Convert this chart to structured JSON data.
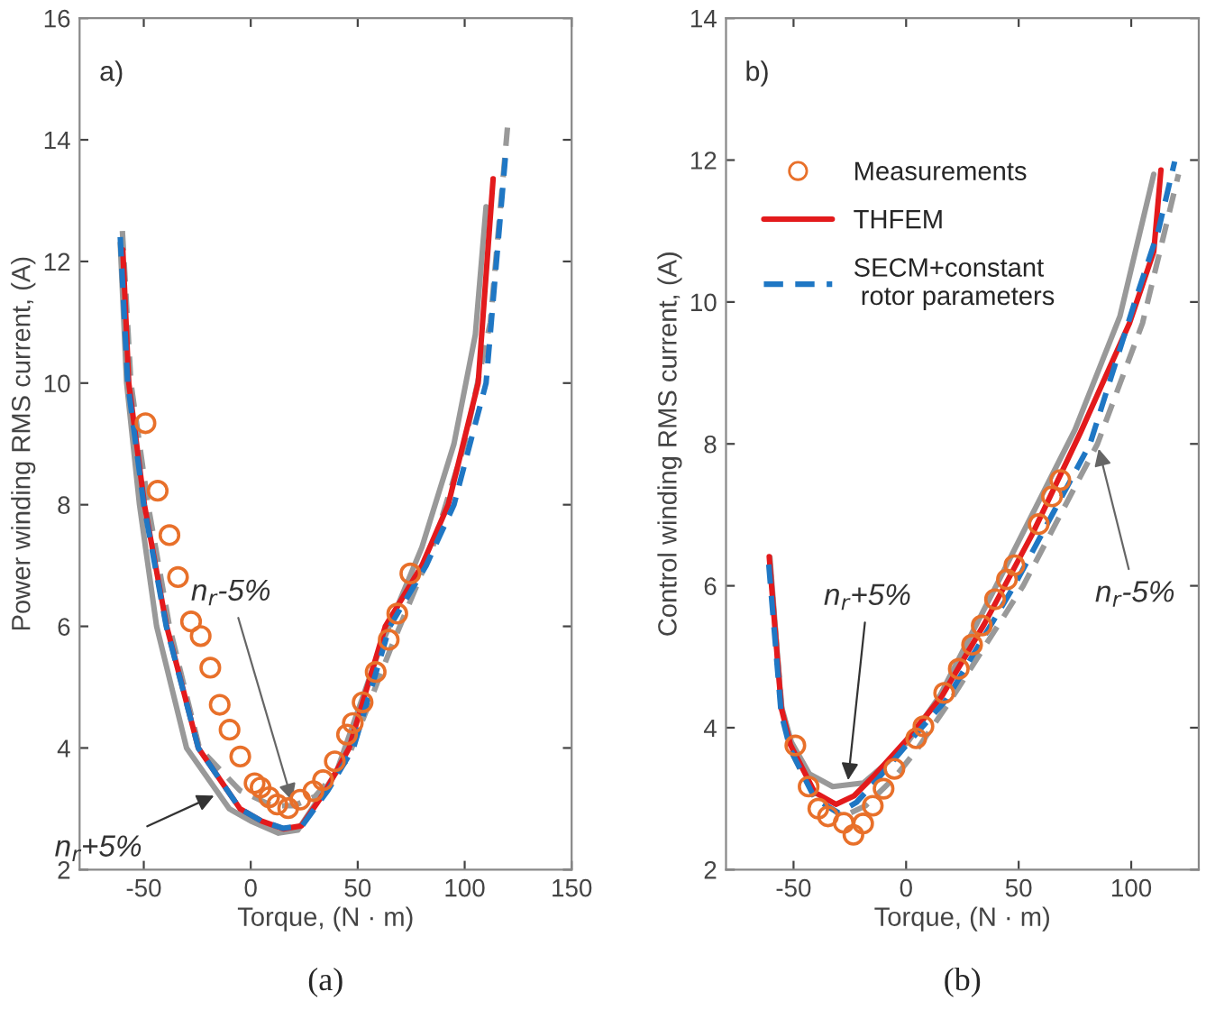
{
  "chart_data": [
    {
      "type": "line",
      "xlabel": "Torque, (N · m)",
      "ylabel": "Power winding RMS current, (A)",
      "xlim": [
        -80,
        150
      ],
      "xticks": [
        -50,
        0,
        50,
        100,
        150
      ],
      "ylim": [
        2,
        16
      ],
      "yticks": [
        2,
        4,
        6,
        8,
        10,
        12,
        14,
        16
      ],
      "grid": false,
      "legend": false,
      "annotations": [
        "a)",
        "(a)",
        {
          "text": "n$_{r}$-5%",
          "x": 20,
          "y": 3.05
        },
        {
          "text": "n$_{r}$+5%",
          "x": -15,
          "y": 3.25
        }
      ],
      "series": [
        {
          "type": "scatter",
          "marker": "circle",
          "color": "#e8702a",
          "x": [
            -49.2,
            -43.5,
            -38,
            -34,
            -27.9,
            -23.4,
            -18.9,
            -14.5,
            -9.9,
            -4.9,
            1.8,
            4.6,
            8.6,
            12.4,
            17.5,
            23.1,
            29.3,
            33.8,
            39.3,
            45,
            47.7,
            52.3,
            58.4,
            64.5,
            68.5,
            74.6
          ],
          "values": [
            9.34,
            8.23,
            7.5,
            6.81,
            6.08,
            5.84,
            5.32,
            4.71,
            4.3,
            3.86,
            3.42,
            3.35,
            3.19,
            3.07,
            3.01,
            3.15,
            3.29,
            3.47,
            3.78,
            4.22,
            4.41,
            4.75,
            5.25,
            5.78,
            6.21,
            6.87
          ]
        },
        {
          "line_style": "solid",
          "color": "#999999",
          "x": [
            -61,
            -58,
            -52,
            -44,
            -30,
            -10,
            0,
            13,
            22,
            40,
            60,
            80,
            95,
            105,
            110
          ],
          "values": [
            12.3,
            10,
            8,
            6,
            4,
            3,
            2.8,
            2.6,
            2.65,
            3.6,
            5.6,
            7.3,
            9,
            10.8,
            12.9
          ]
        },
        {
          "line_style": "dashed",
          "color": "#999999",
          "x": [
            -60,
            -56,
            -48,
            -38,
            -24,
            -5,
            10,
            20,
            30,
            45,
            65,
            85,
            100,
            112,
            120
          ],
          "values": [
            12.5,
            10,
            8,
            6,
            4,
            3.3,
            3.05,
            3.05,
            3.2,
            3.8,
            5.6,
            7.3,
            9,
            11,
            14.2
          ]
        },
        {
          "line_style": "solid",
          "color": "#e31a1c",
          "x": [
            -59.8,
            -57,
            -49.7,
            -39.3,
            -24.5,
            -5,
            5,
            15.3,
            23.7,
            35,
            46,
            62.9,
            80,
            92.3,
            106.3,
            113.3
          ],
          "values": [
            12.19,
            10,
            8,
            6,
            4,
            3,
            2.8,
            2.67,
            2.72,
            3.3,
            4,
            6,
            7,
            8,
            10,
            13.36
          ]
        },
        {
          "line_style": "dashed",
          "color": "#1f77c4",
          "x": [
            -61,
            -57.5,
            -50,
            -39.5,
            -24.5,
            -5,
            5,
            15,
            24,
            36,
            48,
            65,
            82,
            95,
            110,
            119
          ],
          "values": [
            12.4,
            10,
            8,
            6,
            4,
            3,
            2.8,
            2.68,
            2.72,
            3.3,
            4,
            6,
            7,
            8,
            10,
            13.7
          ]
        }
      ]
    },
    {
      "type": "line",
      "xlabel": "Torque, (N · m)",
      "ylabel": "Control winding RMS current, (A)",
      "xlim": [
        -80,
        130
      ],
      "xticks": [
        -50,
        0,
        50,
        100
      ],
      "ylim": [
        2,
        14
      ],
      "yticks": [
        2,
        4,
        6,
        8,
        10,
        12,
        14
      ],
      "grid": false,
      "legend": "top left",
      "annotations": [
        "b)",
        "(b)",
        {
          "text": "n$_{r}$+5%",
          "x": -26,
          "y": 3.19
        },
        {
          "text": "n$_{r}$-5%",
          "x": 85,
          "y": 8
        }
      ],
      "series": [
        {
          "type": "scatter",
          "marker": "circle",
          "name": "Measurements",
          "color": "#e8702a",
          "x": [
            -49.2,
            -43.3,
            -39,
            -34.7,
            -27.7,
            -23.4,
            -19.1,
            -14.8,
            -10,
            -5.2,
            4.5,
            7.7,
            16.9,
            23.4,
            29.3,
            33.6,
            39.5,
            44.8,
            48.1,
            58.9,
            64.8,
            68.5
          ],
          "values": [
            3.75,
            3.17,
            2.86,
            2.75,
            2.66,
            2.49,
            2.65,
            2.9,
            3.14,
            3.42,
            3.85,
            4.02,
            4.49,
            4.83,
            5.17,
            5.44,
            5.81,
            6.09,
            6.29,
            6.87,
            7.26,
            7.49
          ]
        },
        {
          "line_style": "solid",
          "color": "#999999",
          "x": [
            -60.5,
            -55.4,
            -51,
            -43,
            -32.6,
            -19,
            -8.4,
            1,
            15,
            40,
            75,
            95,
            110
          ],
          "values": [
            6.4,
            4.3,
            3.8,
            3.35,
            3.17,
            3.22,
            3.51,
            3.81,
            4.45,
            6,
            8.2,
            9.8,
            11.8
          ]
        },
        {
          "line_style": "dashed",
          "color": "#999999",
          "x": [
            -60.5,
            -55,
            -50,
            -40,
            -28,
            -18,
            -5,
            5,
            20,
            52,
            85,
            105,
            121
          ],
          "values": [
            6.3,
            4.2,
            3.6,
            3,
            2.75,
            2.9,
            3.3,
            3.7,
            4.4,
            6,
            8,
            9.7,
            11.8
          ]
        },
        {
          "line_style": "solid",
          "name": "THFEM",
          "color": "#e31a1c",
          "x": [
            -60.8,
            -55.4,
            -51.4,
            -40.6,
            -31.2,
            -23.1,
            -13.7,
            -0.3,
            15.8,
            34.7,
            56.1,
            77.6,
            99.2,
            110,
            113.2
          ],
          "values": [
            6.41,
            4.27,
            3.76,
            3.09,
            2.92,
            3.04,
            3.34,
            3.81,
            4.44,
            5.46,
            6.73,
            8.17,
            9.7,
            10.71,
            11.86
          ]
        },
        {
          "line_style": "dashed",
          "name": "SECM+constant\n rotor parameters",
          "color": "#1f77c4",
          "x": [
            -61,
            -55.5,
            -51.5,
            -40.5,
            -30,
            -22,
            -12,
            0,
            18,
            48,
            81.7,
            101.9,
            112,
            119.3
          ],
          "values": [
            6.3,
            4.2,
            3.7,
            3,
            2.8,
            2.95,
            3.3,
            3.75,
            4.4,
            6,
            8,
            10.03,
            11,
            11.98
          ]
        }
      ]
    }
  ]
}
